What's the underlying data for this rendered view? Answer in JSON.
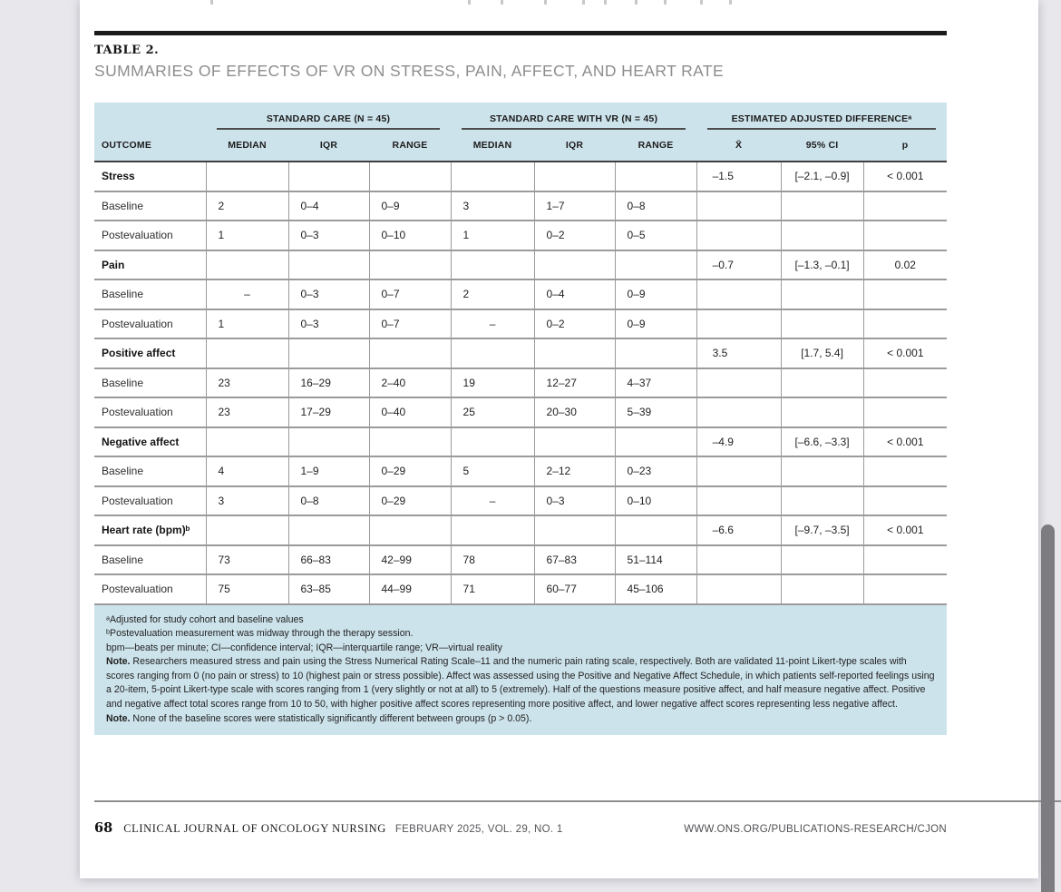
{
  "header": {
    "table_label": "TABLE 2.",
    "table_title": "SUMMARIES OF EFFECTS OF VR ON STRESS, PAIN, AFFECT, AND HEART RATE"
  },
  "chart_data": {
    "type": "table",
    "title": "SUMMARIES OF EFFECTS OF VR ON STRESS, PAIN, AFFECT, AND HEART RATE",
    "groups": [
      "STANDARD CARE (N = 45)",
      "STANDARD CARE WITH VR (N = 45)",
      "ESTIMATED ADJUSTED DIFFERENCEᵃ"
    ],
    "columns": [
      "OUTCOME",
      "MEDIAN",
      "IQR",
      "RANGE",
      "MEDIAN",
      "IQR",
      "RANGE",
      "X̄",
      "95% CI",
      "p"
    ],
    "rows": [
      {
        "label": "Stress",
        "type": "section",
        "values": [
          "",
          "",
          "",
          "",
          "",
          "",
          "–1.5",
          "[–2.1, –0.9]",
          "< 0.001"
        ]
      },
      {
        "label": "Baseline",
        "type": "sub",
        "values": [
          "2",
          "0–4",
          "0–9",
          "3",
          "1–7",
          "0–8",
          "",
          "",
          ""
        ]
      },
      {
        "label": "Postevaluation",
        "type": "sub",
        "values": [
          "1",
          "0–3",
          "0–10",
          "1",
          "0–2",
          "0–5",
          "",
          "",
          ""
        ]
      },
      {
        "label": "Pain",
        "type": "section",
        "values": [
          "",
          "",
          "",
          "",
          "",
          "",
          "–0.7",
          "[–1.3, –0.1]",
          "0.02"
        ]
      },
      {
        "label": "Baseline",
        "type": "sub",
        "values": [
          "–",
          "0–3",
          "0–7",
          "2",
          "0–4",
          "0–9",
          "",
          "",
          ""
        ]
      },
      {
        "label": "Postevaluation",
        "type": "sub",
        "values": [
          "1",
          "0–3",
          "0–7",
          "–",
          "0–2",
          "0–9",
          "",
          "",
          ""
        ]
      },
      {
        "label": "Positive affect",
        "type": "section",
        "values": [
          "",
          "",
          "",
          "",
          "",
          "",
          "3.5",
          "[1.7, 5.4]",
          "< 0.001"
        ]
      },
      {
        "label": "Baseline",
        "type": "sub",
        "values": [
          "23",
          "16–29",
          "2–40",
          "19",
          "12–27",
          "4–37",
          "",
          "",
          ""
        ]
      },
      {
        "label": "Postevaluation",
        "type": "sub",
        "values": [
          "23",
          "17–29",
          "0–40",
          "25",
          "20–30",
          "5–39",
          "",
          "",
          ""
        ]
      },
      {
        "label": "Negative affect",
        "type": "section",
        "values": [
          "",
          "",
          "",
          "",
          "",
          "",
          "–4.9",
          "[–6.6, –3.3]",
          "< 0.001"
        ]
      },
      {
        "label": "Baseline",
        "type": "sub",
        "values": [
          "4",
          "1–9",
          "0–29",
          "5",
          "2–12",
          "0–23",
          "",
          "",
          ""
        ]
      },
      {
        "label": "Postevaluation",
        "type": "sub",
        "values": [
          "3",
          "0–8",
          "0–29",
          "–",
          "0–3",
          "0–10",
          "",
          "",
          ""
        ]
      },
      {
        "label": "Heart rate (bpm)ᵇ",
        "type": "section",
        "values": [
          "",
          "",
          "",
          "",
          "",
          "",
          "–6.6",
          "[–9.7, –3.5]",
          "< 0.001"
        ]
      },
      {
        "label": "Baseline",
        "type": "sub",
        "values": [
          "73",
          "66–83",
          "42–99",
          "78",
          "67–83",
          "51–114",
          "",
          "",
          ""
        ]
      },
      {
        "label": "Postevaluation",
        "type": "sub",
        "values": [
          "75",
          "63–85",
          "44–99",
          "71",
          "60–77",
          "45–106",
          "",
          "",
          ""
        ]
      }
    ]
  },
  "footnotes": {
    "fn_a": "ᵃAdjusted for study cohort and baseline values",
    "fn_b": "ᵇPostevaluation measurement was midway through the therapy session.",
    "fn_abbr": "bpm—beats per minute; CI—confidence interval; IQR—interquartile range; VR—virtual reality",
    "note1_label": "Note.",
    "note1_text": " Researchers measured stress and pain using the Stress Numerical Rating Scale–11 and the numeric pain rating scale, respectively. Both are validated 11-point Likert-type scales with scores ranging from 0 (no pain or stress) to 10 (highest pain or stress possible). Affect was assessed using the Positive and Negative Affect Schedule, in which patients self-reported feelings using a 20-item, 5-point Likert-type scale with scores ranging from 1 (very slightly or not at all) to 5 (extremely). Half of the questions measure positive affect, and half measure negative affect. Positive and negative affect total scores range from 10 to 50, with higher positive affect scores representing more positive affect, and lower negative affect scores representing less negative affect.",
    "note2_label": "Note.",
    "note2_text": " None of the baseline scores were statistically significantly different between groups (p > 0.05)."
  },
  "footer": {
    "page_number": "68",
    "journal_name": "CLINICAL JOURNAL OF ONCOLOGY NURSING",
    "issue": "FEBRUARY 2025, VOL. 29, NO. 1",
    "url": "WWW.ONS.ORG/PUBLICATIONS-RESEARCH/CJON"
  },
  "colors": {
    "table_header_bg": "#cde3eb",
    "footnote_bg": "#cde3eb",
    "rule_black": "#1b1b1b",
    "border_gray": "#9b9b9b",
    "page_bg": "#ffffff",
    "desktop_bg": "#e7e7ec"
  }
}
